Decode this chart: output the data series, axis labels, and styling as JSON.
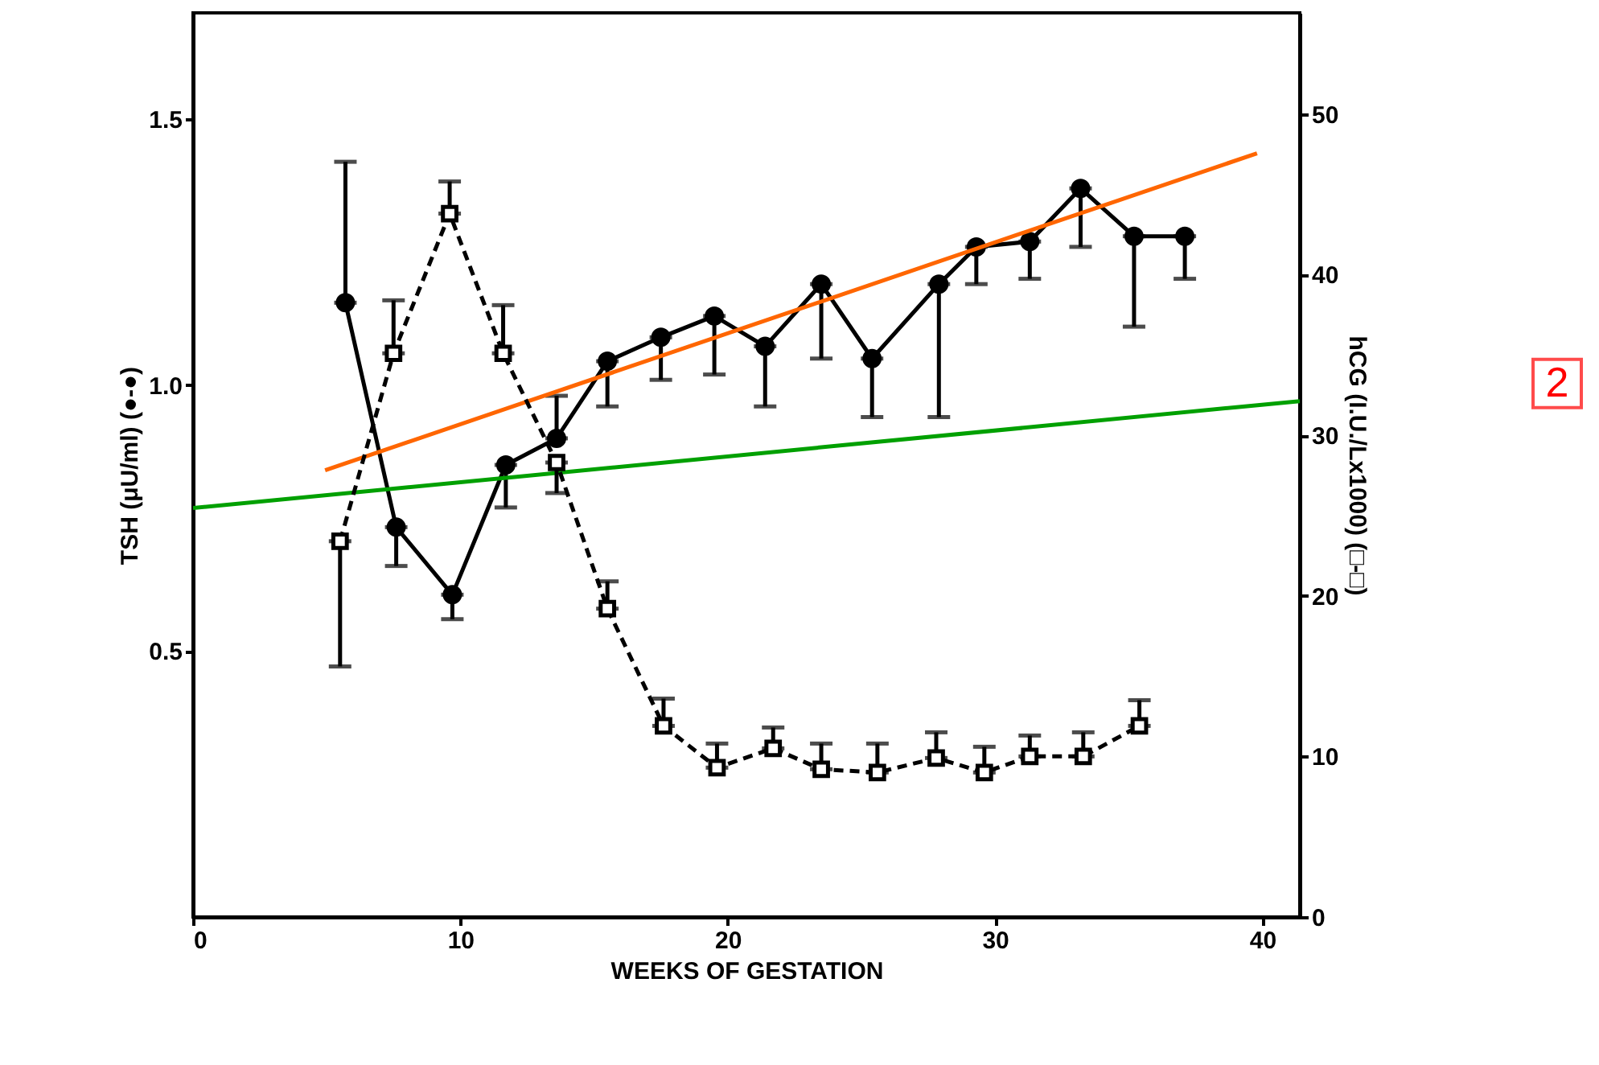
{
  "chart_data": {
    "type": "line",
    "xlabel": "WEEKS OF GESTATION",
    "ylabel": "TSH (μU/ml) (●-●)",
    "y2label": "hCG (I.U./Lx1000) (□-□)",
    "xlim": [
      0,
      41.4
    ],
    "xticks": [
      0,
      10,
      20,
      30,
      40
    ],
    "ylim": [
      0,
      1.7
    ],
    "yticks": [
      {
        "value": 0.5,
        "label": "0.5"
      },
      {
        "value": 1.0,
        "label": "1.0"
      },
      {
        "value": 1.5,
        "label": "1.5"
      }
    ],
    "y2lim": [
      0,
      56.3
    ],
    "y2ticks": [
      0,
      10,
      20,
      30,
      40,
      50
    ],
    "grid": false,
    "series": [
      {
        "color": "#000000",
        "marker": "circle",
        "line_style": "solid",
        "x": [
          5.7,
          7.6,
          9.7,
          11.7,
          13.6,
          15.5,
          17.5,
          19.5,
          21.4,
          23.5,
          25.4,
          27.9,
          29.3,
          31.3,
          33.2,
          35.2,
          37.1
        ],
        "values": [
          1.155,
          0.733,
          0.606,
          0.85,
          0.9,
          1.045,
          1.09,
          1.13,
          1.073,
          1.19,
          1.05,
          1.19,
          1.26,
          1.27,
          1.37,
          1.28,
          1.28
        ],
        "errors": [
          [
            1.155,
            1.42
          ],
          [
            0.66,
            0.733
          ],
          [
            0.56,
            0.606
          ],
          [
            0.77,
            0.85
          ],
          [
            0.9,
            0.98
          ],
          [
            0.96,
            1.045
          ],
          [
            1.01,
            1.09
          ],
          [
            1.02,
            1.13
          ],
          [
            0.96,
            1.073
          ],
          [
            1.05,
            1.19
          ],
          [
            0.94,
            1.05
          ],
          [
            0.94,
            1.19
          ],
          [
            1.19,
            1.26
          ],
          [
            1.2,
            1.27
          ],
          [
            1.26,
            1.37
          ],
          [
            1.11,
            1.28
          ],
          [
            1.2,
            1.28
          ]
        ]
      },
      {
        "color": "#000000",
        "marker": "square",
        "line_style": "dashed",
        "axis": "y2",
        "x": [
          5.5,
          7.5,
          9.6,
          11.6,
          13.6,
          15.5,
          17.6,
          19.6,
          21.7,
          23.5,
          25.6,
          27.8,
          29.6,
          31.3,
          33.3,
          35.4
        ],
        "values": [
          23.4,
          35.1,
          43.8,
          35.1,
          28.3,
          19.2,
          11.9,
          9.3,
          10.5,
          9.2,
          9.0,
          9.9,
          9.0,
          10.0,
          10.0,
          11.9
        ],
        "errors": [
          [
            15.6,
            23.4
          ],
          [
            35.1,
            38.4
          ],
          [
            43.8,
            45.8
          ],
          [
            35.1,
            38.1
          ],
          [
            26.4,
            28.3
          ],
          [
            19.2,
            20.9
          ],
          [
            11.9,
            13.6
          ],
          [
            9.3,
            10.8
          ],
          [
            10.5,
            11.8
          ],
          [
            9.2,
            10.8
          ],
          [
            9.0,
            10.8
          ],
          [
            9.9,
            11.5
          ],
          [
            9.0,
            10.6
          ],
          [
            10.0,
            11.3
          ],
          [
            10.0,
            11.5
          ],
          [
            11.9,
            13.5
          ]
        ]
      },
      {
        "type": "line",
        "color": "#ff6600",
        "marker": "none",
        "line_style": "solid",
        "x": [
          4.94,
          39.8
        ],
        "values": [
          0.84,
          1.436
        ]
      },
      {
        "type": "line",
        "color": "#00a000",
        "marker": "none",
        "line_style": "solid",
        "x": [
          0,
          41.4
        ],
        "values": [
          0.769,
          0.97
        ]
      }
    ],
    "annotations": [
      "2"
    ]
  }
}
